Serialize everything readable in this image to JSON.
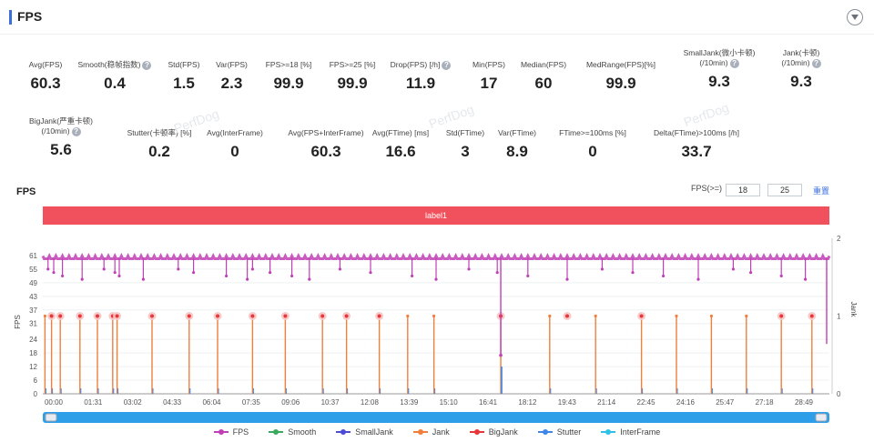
{
  "header": {
    "title": "FPS"
  },
  "metrics_row1": [
    {
      "label": "Avg(FPS)",
      "value": "60.3",
      "help": false
    },
    {
      "label": "Smooth(稳帧指数)",
      "value": "0.4",
      "help": true
    },
    {
      "label": "Std(FPS)",
      "value": "1.5",
      "help": false
    },
    {
      "label": "Var(FPS)",
      "value": "2.3",
      "help": false
    },
    {
      "label": "FPS>=18 [%]",
      "value": "99.9",
      "help": false
    },
    {
      "label": "FPS>=25 [%]",
      "value": "99.9",
      "help": false
    },
    {
      "label": "Drop(FPS) [/h]",
      "value": "11.9",
      "help": true
    },
    {
      "label": "Min(FPS)",
      "value": "17",
      "help": false
    },
    {
      "label": "Median(FPS)",
      "value": "60",
      "help": false
    },
    {
      "label": "MedRange(FPS)[%]",
      "value": "99.9",
      "help": false
    },
    {
      "label": "SmallJank(微小卡顿)",
      "label2": "(/10min)",
      "value": "9.3",
      "help": true
    },
    {
      "label": "Jank(卡顿)",
      "label2": "(/10min)",
      "value": "9.3",
      "help": true
    }
  ],
  "metrics_row2": [
    {
      "label": "BigJank(严重卡顿)",
      "label2": "(/10min)",
      "value": "5.6",
      "help": true
    },
    {
      "label": "Stutter(卡顿率) [%]",
      "value": "0.2",
      "help": false
    },
    {
      "label": "Avg(InterFrame)",
      "value": "0",
      "help": false
    },
    {
      "label": "Avg(FPS+InterFrame)",
      "value": "60.3",
      "help": false
    },
    {
      "label": "Avg(FTime) [ms]",
      "value": "16.6",
      "help": false
    },
    {
      "label": "Std(FTime)",
      "value": "3",
      "help": false
    },
    {
      "label": "Var(FTime)",
      "value": "8.9",
      "help": false
    },
    {
      "label": "FTime>=100ms [%]",
      "value": "0",
      "help": false
    },
    {
      "label": "Delta(FTime)>100ms [/h]",
      "value": "33.7",
      "help": false
    }
  ],
  "watermark": "PerfDog",
  "chart": {
    "title": "FPS",
    "fps_ge_label": "FPS(>=)",
    "fps_threshold_1": "18",
    "fps_threshold_2": "25",
    "reset_label": "重置",
    "label_bar": "label1"
  },
  "chart_data": {
    "type": "line",
    "ylabel": "FPS",
    "y2label": "Jank",
    "yticks": [
      "0",
      "6",
      "12",
      "18",
      "24",
      "31",
      "37",
      "43",
      "49",
      "55",
      "61"
    ],
    "y2ticks": [
      "0",
      "1",
      "2"
    ],
    "xticks": [
      "00:00",
      "01:31",
      "03:02",
      "04:33",
      "06:04",
      "07:35",
      "09:06",
      "10:37",
      "12:08",
      "13:39",
      "15:10",
      "16:41",
      "18:12",
      "19:43",
      "21:14",
      "22:45",
      "24:16",
      "25:47",
      "27:18",
      "28:49"
    ],
    "fps_baseline": 60,
    "fps_min": 17,
    "fps_min_time_s": 1048,
    "fps_dips_time_s": [
      12,
      25,
      45,
      90,
      140,
      165,
      175,
      230,
      310,
      345,
      420,
      468,
      480,
      520,
      570,
      610,
      680,
      750,
      845,
      900,
      975,
      1040,
      1110,
      1200,
      1280,
      1350,
      1420,
      1500,
      1580,
      1620,
      1690,
      1745
    ],
    "jank_times_s": [
      5,
      20,
      40,
      85,
      125,
      160,
      170,
      250,
      335,
      400,
      480,
      555,
      640,
      695,
      770,
      835,
      895,
      1048,
      1160,
      1265,
      1370,
      1450,
      1530,
      1610,
      1690,
      1760
    ],
    "bigjank_times_s": [
      20,
      40,
      85,
      125,
      160,
      170,
      250,
      335,
      400,
      480,
      555,
      640,
      695,
      770,
      1048,
      1200,
      1370,
      1690,
      1760
    ],
    "stutter_time_s": 1048,
    "legend": [
      {
        "name": "FPS",
        "color": "#c13fb6"
      },
      {
        "name": "Smooth",
        "color": "#3aaa5c"
      },
      {
        "name": "SmallJank",
        "color": "#4b4bd6"
      },
      {
        "name": "Jank",
        "color": "#f07f3c"
      },
      {
        "name": "BigJank",
        "color": "#e8363a"
      },
      {
        "name": "Stutter",
        "color": "#3f86e8"
      },
      {
        "name": "InterFrame",
        "color": "#2fc0e8"
      }
    ]
  }
}
